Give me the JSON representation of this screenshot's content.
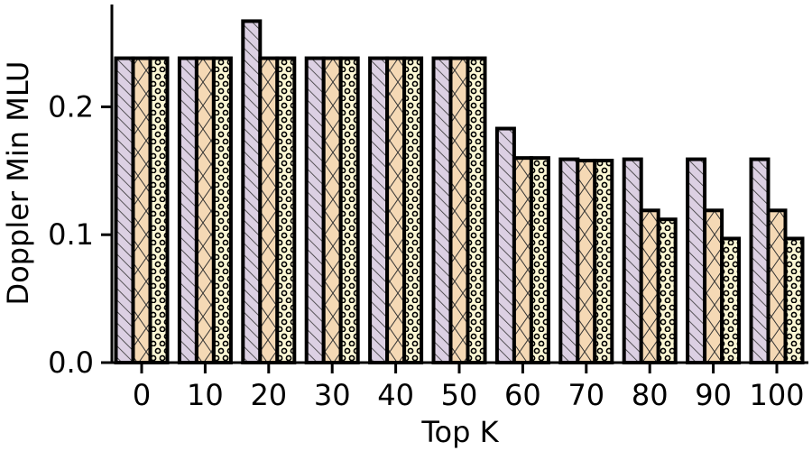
{
  "chart_data": {
    "type": "bar",
    "xlabel": "Top K",
    "ylabel": "Doppler Min MLU",
    "categories": [
      "0",
      "10",
      "20",
      "30",
      "40",
      "50",
      "60",
      "70",
      "80",
      "90",
      "100"
    ],
    "series": [
      {
        "values": [
          0.238,
          0.238,
          0.267,
          0.238,
          0.238,
          0.238,
          0.183,
          0.159,
          0.159,
          0.159,
          0.159
        ],
        "color": "#dcd0e3",
        "pattern": "diagonal-hatch"
      },
      {
        "values": [
          0.238,
          0.238,
          0.238,
          0.238,
          0.238,
          0.238,
          0.16,
          0.158,
          0.119,
          0.119,
          0.119
        ],
        "color": "#f5d9b5",
        "pattern": "cross-hatch"
      },
      {
        "values": [
          0.238,
          0.238,
          0.238,
          0.238,
          0.238,
          0.238,
          0.16,
          0.158,
          0.112,
          0.097,
          0.097
        ],
        "color": "#fdf8d5",
        "pattern": "circles"
      }
    ],
    "yticks": [
      0.0,
      0.1,
      0.2
    ],
    "ytick_labels": [
      "0.0",
      "0.1",
      "0.2"
    ],
    "ylim": [
      0,
      0.28
    ],
    "grid": false,
    "legend": "none"
  }
}
